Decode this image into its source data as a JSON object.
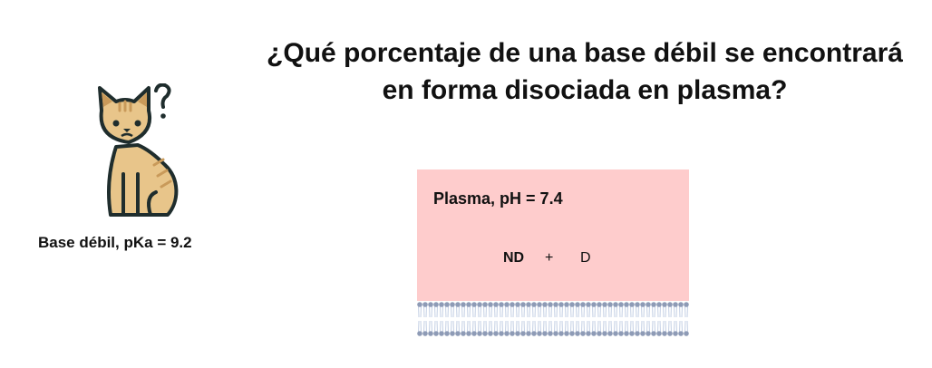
{
  "title": "¿Qué porcentaje de una base débil se encontrará en forma disociada en plasma?",
  "base_label": "Base débil, pKa = 9.2",
  "plasma": {
    "label": "Plasma, pH = 7.4",
    "species_nd": "ND",
    "plus": "+",
    "species_d": "D",
    "color": "#fecccc"
  },
  "icons": {
    "cat": "cat-question-icon",
    "membrane": "lipid-bilayer"
  }
}
